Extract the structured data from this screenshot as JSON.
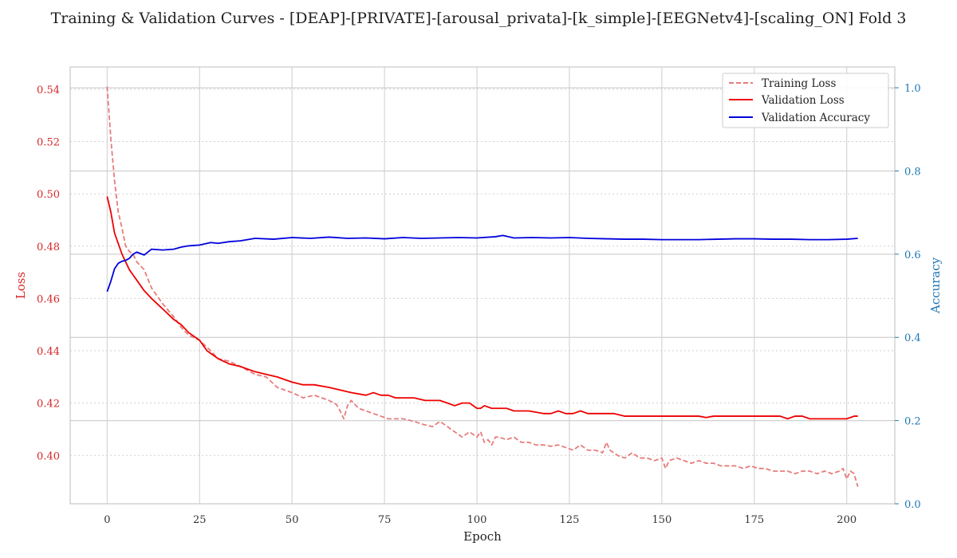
{
  "chart_data": {
    "type": "line",
    "title": "Training & Validation Curves - [DEAP]-[PRIVATE]-[arousal_privata]-[k_simple]-[EEGNetv4]-[scaling_ON] Fold 3",
    "xlabel": "Epoch",
    "ylabel_left": "Loss",
    "ylabel_right": "Accuracy",
    "xlim": [
      -10,
      213
    ],
    "ylim_left": [
      0.3815,
      0.5485
    ],
    "ylim_right": [
      0.0,
      1.05
    ],
    "x_ticks": [
      0,
      25,
      50,
      75,
      100,
      125,
      150,
      175,
      200
    ],
    "x_tick_labels": [
      "0",
      "25",
      "50",
      "75",
      "100",
      "125",
      "150",
      "175",
      "200"
    ],
    "y_left_ticks": [
      0.4,
      0.42,
      0.44,
      0.46,
      0.48,
      0.5,
      0.52,
      0.54
    ],
    "y_left_tick_labels": [
      "0.40",
      "0.42",
      "0.44",
      "0.46",
      "0.48",
      "0.50",
      "0.52",
      "0.54"
    ],
    "y_right_ticks": [
      0.0,
      0.2,
      0.4,
      0.6,
      0.8,
      1.0
    ],
    "y_right_tick_labels": [
      "0.0",
      "0.2",
      "0.4",
      "0.6",
      "0.8",
      "1.0"
    ],
    "grid": true,
    "legend_position": "top-right",
    "colors": {
      "training_loss": "#e87c7c",
      "validation_loss": "#ee0000",
      "validation_accuracy": "#0000dd",
      "left_axis": "#d62728",
      "right_axis": "#1f77b4"
    },
    "series": [
      {
        "name": "Training Loss",
        "axis": "left",
        "style": "dashed",
        "x": [
          0,
          1,
          2,
          3,
          4,
          5,
          6,
          7,
          8,
          10,
          12,
          15,
          18,
          20,
          22,
          25,
          28,
          30,
          33,
          36,
          40,
          43,
          46,
          50,
          53,
          56,
          60,
          62,
          63,
          64,
          65,
          66,
          68,
          70,
          72,
          74,
          76,
          78,
          80,
          83,
          85,
          88,
          90,
          92,
          94,
          96,
          98,
          100,
          101,
          102,
          103,
          104,
          105,
          106,
          108,
          110,
          112,
          114,
          116,
          118,
          120,
          122,
          124,
          126,
          128,
          130,
          132,
          134,
          135,
          136,
          138,
          140,
          142,
          144,
          146,
          148,
          150,
          151,
          152,
          154,
          156,
          158,
          160,
          162,
          164,
          166,
          168,
          170,
          172,
          174,
          176,
          178,
          180,
          182,
          184,
          186,
          188,
          190,
          192,
          194,
          196,
          198,
          199,
          200,
          201,
          202,
          203
        ],
        "y": [
          0.541,
          0.521,
          0.505,
          0.493,
          0.487,
          0.48,
          0.478,
          0.477,
          0.474,
          0.471,
          0.464,
          0.458,
          0.453,
          0.449,
          0.446,
          0.444,
          0.44,
          0.437,
          0.436,
          0.434,
          0.431,
          0.43,
          0.426,
          0.424,
          0.422,
          0.423,
          0.421,
          0.4195,
          0.417,
          0.414,
          0.419,
          0.421,
          0.418,
          0.417,
          0.416,
          0.415,
          0.414,
          0.414,
          0.414,
          0.413,
          0.412,
          0.411,
          0.413,
          0.411,
          0.409,
          0.407,
          0.409,
          0.407,
          0.409,
          0.405,
          0.406,
          0.404,
          0.407,
          0.407,
          0.406,
          0.407,
          0.405,
          0.405,
          0.404,
          0.404,
          0.4035,
          0.404,
          0.403,
          0.402,
          0.404,
          0.402,
          0.402,
          0.401,
          0.405,
          0.402,
          0.4,
          0.399,
          0.401,
          0.399,
          0.399,
          0.398,
          0.399,
          0.395,
          0.398,
          0.399,
          0.398,
          0.397,
          0.398,
          0.397,
          0.397,
          0.396,
          0.396,
          0.396,
          0.395,
          0.396,
          0.395,
          0.395,
          0.394,
          0.394,
          0.394,
          0.393,
          0.394,
          0.394,
          0.393,
          0.394,
          0.393,
          0.394,
          0.395,
          0.391,
          0.394,
          0.393,
          0.388
        ]
      },
      {
        "name": "Validation Loss",
        "axis": "left",
        "style": "solid",
        "x": [
          0,
          1,
          2,
          3,
          4,
          5,
          6,
          7,
          8,
          10,
          12,
          15,
          18,
          20,
          22,
          25,
          27,
          30,
          33,
          36,
          40,
          43,
          46,
          50,
          53,
          56,
          60,
          63,
          66,
          70,
          72,
          74,
          76,
          78,
          80,
          83,
          86,
          90,
          92,
          94,
          96,
          98,
          100,
          101,
          102,
          104,
          106,
          108,
          110,
          112,
          114,
          116,
          118,
          120,
          122,
          124,
          126,
          128,
          130,
          132,
          135,
          137,
          140,
          142,
          144,
          146,
          148,
          150,
          152,
          154,
          156,
          158,
          160,
          162,
          164,
          166,
          168,
          170,
          172,
          175,
          178,
          180,
          182,
          184,
          186,
          188,
          190,
          192,
          194,
          196,
          198,
          200,
          202,
          203
        ],
        "y": [
          0.499,
          0.493,
          0.485,
          0.481,
          0.477,
          0.474,
          0.471,
          0.469,
          0.467,
          0.463,
          0.46,
          0.456,
          0.452,
          0.45,
          0.447,
          0.444,
          0.44,
          0.437,
          0.435,
          0.434,
          0.432,
          0.431,
          0.43,
          0.428,
          0.427,
          0.427,
          0.426,
          0.425,
          0.424,
          0.423,
          0.424,
          0.423,
          0.423,
          0.422,
          0.422,
          0.422,
          0.421,
          0.421,
          0.42,
          0.419,
          0.42,
          0.42,
          0.418,
          0.418,
          0.419,
          0.418,
          0.418,
          0.418,
          0.417,
          0.417,
          0.417,
          0.4165,
          0.416,
          0.416,
          0.417,
          0.416,
          0.416,
          0.417,
          0.416,
          0.416,
          0.416,
          0.416,
          0.415,
          0.415,
          0.415,
          0.415,
          0.415,
          0.415,
          0.415,
          0.415,
          0.415,
          0.415,
          0.415,
          0.4145,
          0.415,
          0.415,
          0.415,
          0.415,
          0.415,
          0.415,
          0.415,
          0.415,
          0.415,
          0.414,
          0.415,
          0.415,
          0.414,
          0.414,
          0.414,
          0.414,
          0.414,
          0.414,
          0.415,
          0.415
        ]
      },
      {
        "name": "Validation Accuracy",
        "axis": "right",
        "style": "solid",
        "x": [
          0,
          1,
          2,
          3,
          4,
          5,
          6,
          7,
          8,
          10,
          12,
          15,
          18,
          20,
          22,
          25,
          28,
          30,
          33,
          36,
          40,
          45,
          50,
          55,
          60,
          65,
          70,
          75,
          80,
          85,
          90,
          95,
          100,
          105,
          107,
          110,
          115,
          120,
          125,
          130,
          135,
          140,
          145,
          150,
          155,
          160,
          165,
          170,
          175,
          180,
          185,
          190,
          195,
          200,
          203
        ],
        "y": [
          0.51,
          0.535,
          0.565,
          0.578,
          0.583,
          0.585,
          0.59,
          0.6,
          0.605,
          0.598,
          0.612,
          0.61,
          0.612,
          0.617,
          0.62,
          0.622,
          0.628,
          0.626,
          0.63,
          0.632,
          0.638,
          0.636,
          0.64,
          0.638,
          0.641,
          0.638,
          0.639,
          0.637,
          0.64,
          0.638,
          0.639,
          0.64,
          0.639,
          0.642,
          0.645,
          0.639,
          0.64,
          0.639,
          0.64,
          0.638,
          0.637,
          0.636,
          0.636,
          0.635,
          0.635,
          0.635,
          0.636,
          0.637,
          0.637,
          0.636,
          0.636,
          0.635,
          0.635,
          0.636,
          0.638
        ]
      }
    ]
  }
}
